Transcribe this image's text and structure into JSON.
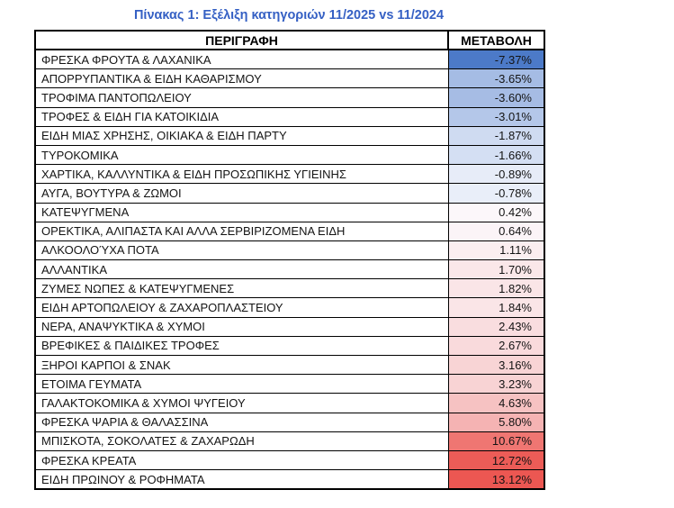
{
  "page": {
    "background": "#ffffff"
  },
  "title": {
    "text": "Πίνακας 1: Εξέλιξη κατηγοριών 11/2025 vs 11/2024",
    "color": "#3560C4"
  },
  "table": {
    "headers": [
      "ΠΕΡΙΓΡΑΦΗ",
      "ΜΕΤΑΒΟΛΗ"
    ],
    "rows": [
      {
        "label": "ΦΡΕΣΚΑ ΦΡΟΥΤΑ & ΛΑΧΑΝΙΚΑ",
        "value": "-7.37%",
        "color": "#4C7AC8"
      },
      {
        "label": "ΑΠΟΡΡΥΠΑΝΤΙΚΑ & ΕΙΔΗ ΚΑΘΑΡΙΣΜΟΥ",
        "value": "-3.65%",
        "color": "#A5BCE4"
      },
      {
        "label": "ΤΡΟΦΙΜΑ ΠΑΝΤΟΠΩΛΕΙΟΥ",
        "value": "-3.60%",
        "color": "#A6BCE4"
      },
      {
        "label": "ΤΡΟΦΕΣ & ΕΙΔΗ ΓΙΑ ΚΑΤΟΙΚΙΔΙΑ",
        "value": "-3.01%",
        "color": "#B4C7E9"
      },
      {
        "label": "ΕΙΔΗ ΜΙΑΣ ΧΡΗΣΗΣ, ΟΙΚΙΑΚΑ & ΕΙΔΗ ΠΑΡΤΥ",
        "value": "-1.87%",
        "color": "#CFDBF1"
      },
      {
        "label": "ΤΥΡΟΚΟΜΙΚΑ",
        "value": "-1.66%",
        "color": "#D4DFF3"
      },
      {
        "label": "ΧΑΡΤΙΚΑ, ΚΑΛΛΥΝΤΙΚΑ & ΕΙΔΗ ΠΡΟΣΩΠΙΚΗΣ ΥΓΙΕΙΝΗΣ",
        "value": "-0.89%",
        "color": "#E7ECF8"
      },
      {
        "label": "ΑΥΓΑ, ΒΟΥΤΥΡΑ & ΖΩΜΟΙ",
        "value": "-0.78%",
        "color": "#E9EEF9"
      },
      {
        "label": "ΚΑΤΕΨΥΓΜΕΝΑ",
        "value": "0.42%",
        "color": "#FCF7FA"
      },
      {
        "label": "ΟΡΕΚΤΙΚΑ, ΑΛΙΠΑΣΤΑ ΚΑΙ ΑΛΛΑ ΣΕΡΒΙΡΙΖΟΜΕΝΑ ΕΙΔΗ",
        "value": "0.64%",
        "color": "#FBF4F7"
      },
      {
        "label": "ΑΛΚΟΟΛΟΎΧΑ ΠΟΤΑ",
        "value": "1.11%",
        "color": "#FBEEF0"
      },
      {
        "label": "ΑΛΛΑΝΤΙΚΑ",
        "value": "1.70%",
        "color": "#FAE7E9"
      },
      {
        "label": "ΖΥΜΕΣ ΝΩΠΕΣ & ΚΑΤΕΨΥΓΜΕΝΕΣ",
        "value": "1.82%",
        "color": "#FAE5E7"
      },
      {
        "label": "ΕΙΔΗ ΑΡΤΟΠΩΛΕΙΟΥ & ΖΑΧΑΡΟΠΛΑΣΤΕΙΟΥ",
        "value": "1.84%",
        "color": "#FAE5E7"
      },
      {
        "label": "ΝΕΡΑ, ΑΝΑΨΥΚΤΙΚΑ & ΧΥΜΟΙ",
        "value": "2.43%",
        "color": "#F9DDDF"
      },
      {
        "label": "ΒΡΕΦΙΚΕΣ & ΠΑΙΔΙΚΕΣ ΤΡΟΦΕΣ",
        "value": "2.67%",
        "color": "#F9DADC"
      },
      {
        "label": "ΞΗΡΟΙ ΚΑΡΠΟΙ & ΣΝΑΚ",
        "value": "3.16%",
        "color": "#F8D4D5"
      },
      {
        "label": "ΕΤΟΙΜΑ ΓΕΥΜΑΤΑ",
        "value": "3.23%",
        "color": "#F8D3D4"
      },
      {
        "label": "ΓΑΛΑΚΤΟΚΟΜΙΚΑ & ΧΥΜΟΙ ΨΥΓΕΙΟΥ",
        "value": "4.63%",
        "color": "#F6C2C2"
      },
      {
        "label": "ΦΡΕΣΚΑ ΨΑΡΙΑ & ΘΑΛΑΣΣΙΝΑ",
        "value": "5.80%",
        "color": "#F5B3B3"
      },
      {
        "label": "ΜΠΙΣΚΟΤΑ, ΣΟΚΟΛΑΤΕΣ & ΖΑΧΑΡΩΔΗ",
        "value": "10.67%",
        "color": "#EF7672"
      },
      {
        "label": "ΦΡΕΣΚΑ ΚΡΕΑΤΑ",
        "value": "12.72%",
        "color": "#EC5C57"
      },
      {
        "label": "ΕΙΔΗ ΠΡΩΙΝΟΥ & ΡΟΦΗΜΑΤΑ",
        "value": "13.12%",
        "color": "#EC5752"
      }
    ]
  },
  "chart_data": {
    "type": "table",
    "title": "Πίνακας 1: Εξέλιξη κατηγοριών 11/2025 vs 11/2024",
    "columns": [
      "ΠΕΡΙΓΡΑΦΗ",
      "ΜΕΤΑΒΟΛΗ"
    ],
    "categories": [
      "ΦΡΕΣΚΑ ΦΡΟΥΤΑ & ΛΑΧΑΝΙΚΑ",
      "ΑΠΟΡΡΥΠΑΝΤΙΚΑ & ΕΙΔΗ ΚΑΘΑΡΙΣΜΟΥ",
      "ΤΡΟΦΙΜΑ ΠΑΝΤΟΠΩΛΕΙΟΥ",
      "ΤΡΟΦΕΣ & ΕΙΔΗ ΓΙΑ ΚΑΤΟΙΚΙΔΙΑ",
      "ΕΙΔΗ ΜΙΑΣ ΧΡΗΣΗΣ, ΟΙΚΙΑΚΑ & ΕΙΔΗ ΠΑΡΤΥ",
      "ΤΥΡΟΚΟΜΙΚΑ",
      "ΧΑΡΤΙΚΑ, ΚΑΛΛΥΝΤΙΚΑ & ΕΙΔΗ ΠΡΟΣΩΠΙΚΗΣ ΥΓΙΕΙΝΗΣ",
      "ΑΥΓΑ, ΒΟΥΤΥΡΑ & ΖΩΜΟΙ",
      "ΚΑΤΕΨΥΓΜΕΝΑ",
      "ΟΡΕΚΤΙΚΑ, ΑΛΙΠΑΣΤΑ ΚΑΙ ΑΛΛΑ ΣΕΡΒΙΡΙΖΟΜΕΝΑ ΕΙΔΗ",
      "ΑΛΚΟΟΛΟΎΧΑ ΠΟΤΑ",
      "ΑΛΛΑΝΤΙΚΑ",
      "ΖΥΜΕΣ ΝΩΠΕΣ & ΚΑΤΕΨΥΓΜΕΝΕΣ",
      "ΕΙΔΗ ΑΡΤΟΠΩΛΕΙΟΥ & ΖΑΧΑΡΟΠΛΑΣΤΕΙΟΥ",
      "ΝΕΡΑ, ΑΝΑΨΥΚΤΙΚΑ & ΧΥΜΟΙ",
      "ΒΡΕΦΙΚΕΣ & ΠΑΙΔΙΚΕΣ ΤΡΟΦΕΣ",
      "ΞΗΡΟΙ ΚΑΡΠΟΙ & ΣΝΑΚ",
      "ΕΤΟΙΜΑ ΓΕΥΜΑΤΑ",
      "ΓΑΛΑΚΤΟΚΟΜΙΚΑ & ΧΥΜΟΙ ΨΥΓΕΙΟΥ",
      "ΦΡΕΣΚΑ ΨΑΡΙΑ & ΘΑΛΑΣΣΙΝΑ",
      "ΜΠΙΣΚΟΤΑ, ΣΟΚΟΛΑΤΕΣ & ΖΑΧΑΡΩΔΗ",
      "ΦΡΕΣΚΑ ΚΡΕΑΤΑ",
      "ΕΙΔΗ ΠΡΩΙΝΟΥ & ΡΟΦΗΜΑΤΑ"
    ],
    "values": [
      -7.37,
      -3.65,
      -3.6,
      -3.01,
      -1.87,
      -1.66,
      -0.89,
      -0.78,
      0.42,
      0.64,
      1.11,
      1.7,
      1.82,
      1.84,
      2.43,
      2.67,
      3.16,
      3.23,
      4.63,
      5.8,
      10.67,
      12.72,
      13.12
    ],
    "value_suffix": "%",
    "color_scale": {
      "min_value": -7.37,
      "min_color": "#4C7AC8",
      "mid_value": 0,
      "mid_color": "#FCFCFF",
      "max_value": 13.12,
      "max_color": "#EC5752"
    },
    "legend": "none",
    "notes": "Conditional-formatting color scale: negative = blue shades, positive = red shades"
  }
}
